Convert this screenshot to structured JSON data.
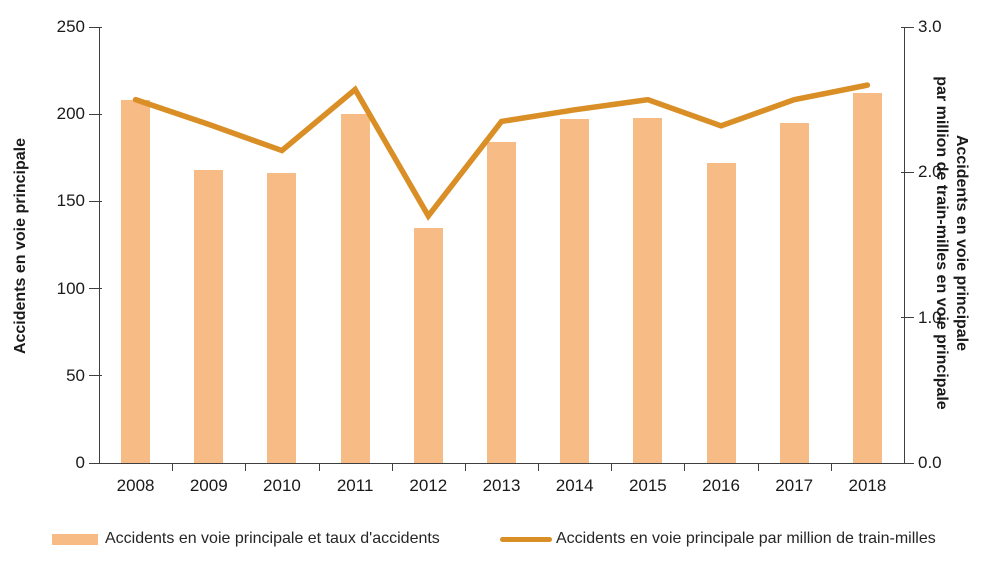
{
  "chart_data": {
    "type": "combo-bar-line",
    "title": "",
    "categories": [
      "2008",
      "2009",
      "2010",
      "2011",
      "2012",
      "2013",
      "2014",
      "2015",
      "2016",
      "2017",
      "2018"
    ],
    "series": [
      {
        "name": "Accidents en voie principale et taux d'accidents",
        "type": "bar",
        "axis": "left",
        "color": "#f7bb86",
        "values": [
          208,
          168,
          166,
          200,
          135,
          184,
          197,
          198,
          172,
          195,
          212
        ]
      },
      {
        "name": "Accidents en voie principale par million de train-milles",
        "type": "line",
        "axis": "right",
        "color": "#d98e26",
        "values": [
          2.5,
          2.33,
          2.15,
          2.57,
          1.7,
          2.35,
          2.43,
          2.5,
          2.32,
          2.5,
          2.6
        ]
      }
    ],
    "left_axis": {
      "title": "Accidents en voie principale",
      "min": 0,
      "max": 250,
      "tick_labels": [
        "0",
        "50",
        "100",
        "150",
        "200",
        "250"
      ]
    },
    "right_axis": {
      "title_line1": "Accidents en voie principale",
      "title_line2": "par million de train-milles en voie principale",
      "min": 0,
      "max": 3,
      "tick_labels": [
        "0.0",
        "1.0",
        "2.0",
        "3.0"
      ]
    },
    "grid": false,
    "legend_position": "bottom",
    "legend": [
      {
        "label": "Accidents en voie principale et taux d'accidents",
        "swatch": "bar",
        "color": "#f7bb86"
      },
      {
        "label": "Accidents en voie principale par million de train-milles",
        "swatch": "line",
        "color": "#d98e26"
      }
    ]
  }
}
